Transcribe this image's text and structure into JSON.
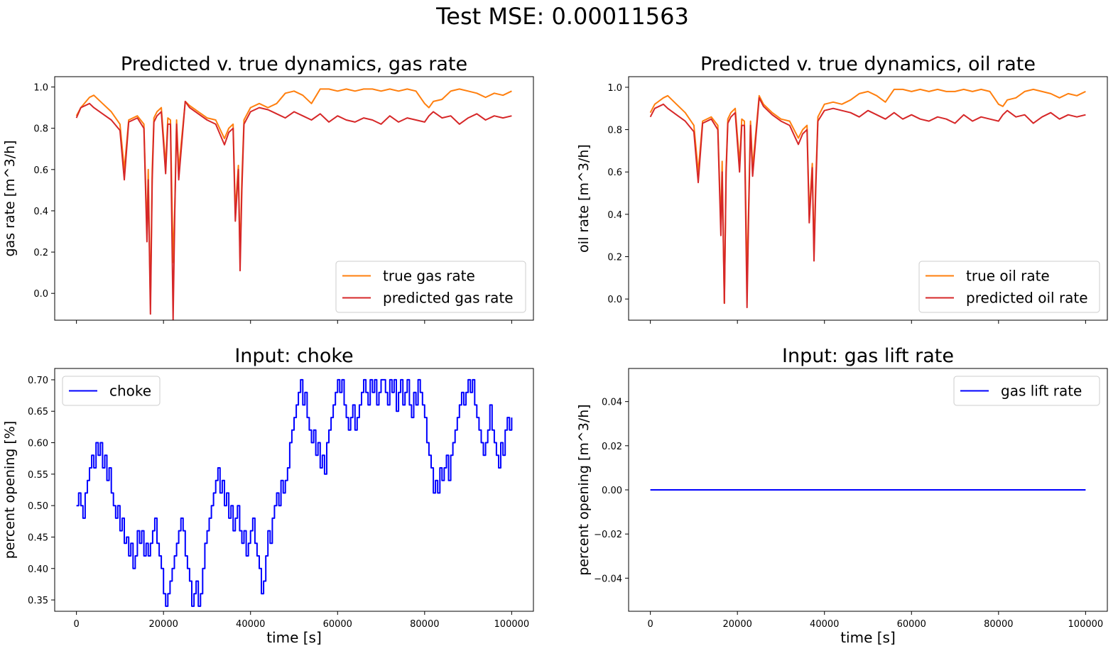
{
  "suptitle": "Test MSE: 0.00011563",
  "chart_data": [
    {
      "type": "line",
      "title": "Predicted v. true dynamics, gas rate",
      "xlabel": "",
      "ylabel": "gas rate [m^3/h]",
      "xlim": [
        -5000,
        105000
      ],
      "ylim": [
        -0.13,
        1.05
      ],
      "xticks": [
        0,
        20000,
        40000,
        60000,
        80000,
        100000
      ],
      "xticklabels": [
        "",
        "",
        "",
        "",
        "",
        ""
      ],
      "yticks": [
        0.0,
        0.2,
        0.4,
        0.6,
        0.8,
        1.0
      ],
      "yticklabels": [
        "0.0",
        "0.2",
        "0.4",
        "0.6",
        "0.8",
        "1.0"
      ],
      "legend_position": "lower right",
      "x": [
        0,
        1000,
        3000,
        4000,
        6000,
        8000,
        10000,
        11000,
        12000,
        14000,
        15500,
        16200,
        16500,
        17000,
        17400,
        17800,
        18500,
        19500,
        20500,
        21000,
        21600,
        22200,
        22600,
        23000,
        23500,
        25000,
        26000,
        28000,
        30000,
        32000,
        34000,
        35000,
        36000,
        36500,
        37200,
        37600,
        38000,
        38500,
        40000,
        42000,
        44000,
        46000,
        48000,
        50000,
        52000,
        54000,
        56000,
        58000,
        60000,
        62000,
        64000,
        66000,
        68000,
        70000,
        72000,
        74000,
        76000,
        78000,
        80000,
        81000,
        82000,
        84000,
        86000,
        88000,
        90000,
        92000,
        94000,
        96000,
        98000,
        100000
      ],
      "series": [
        {
          "name": "true gas rate",
          "color": "#ff7f0e",
          "values": [
            0.86,
            0.9,
            0.95,
            0.96,
            0.92,
            0.88,
            0.82,
            0.6,
            0.84,
            0.86,
            0.82,
            0.3,
            0.6,
            -0.05,
            0.6,
            0.85,
            0.88,
            0.9,
            0.62,
            0.85,
            0.84,
            0.15,
            0.42,
            0.84,
            0.6,
            0.93,
            0.91,
            0.88,
            0.85,
            0.84,
            0.75,
            0.8,
            0.82,
            0.4,
            0.62,
            0.16,
            0.55,
            0.84,
            0.9,
            0.92,
            0.9,
            0.92,
            0.97,
            0.98,
            0.96,
            0.92,
            0.99,
            0.99,
            0.98,
            0.99,
            0.98,
            0.99,
            0.99,
            0.98,
            0.99,
            0.98,
            0.99,
            0.98,
            0.92,
            0.9,
            0.93,
            0.94,
            0.98,
            0.99,
            0.98,
            0.97,
            0.95,
            0.97,
            0.96,
            0.98
          ]
        },
        {
          "name": "predicted gas rate",
          "color": "#d62728",
          "values": [
            0.85,
            0.9,
            0.92,
            0.9,
            0.87,
            0.84,
            0.79,
            0.55,
            0.83,
            0.85,
            0.8,
            0.25,
            0.55,
            -0.1,
            0.55,
            0.83,
            0.86,
            0.88,
            0.58,
            0.82,
            0.82,
            -0.13,
            0.4,
            0.82,
            0.55,
            0.93,
            0.9,
            0.87,
            0.84,
            0.82,
            0.72,
            0.78,
            0.8,
            0.35,
            0.6,
            0.11,
            0.5,
            0.82,
            0.88,
            0.9,
            0.89,
            0.87,
            0.85,
            0.88,
            0.86,
            0.84,
            0.87,
            0.83,
            0.86,
            0.84,
            0.83,
            0.85,
            0.84,
            0.82,
            0.86,
            0.83,
            0.85,
            0.84,
            0.83,
            0.86,
            0.88,
            0.85,
            0.86,
            0.82,
            0.85,
            0.87,
            0.84,
            0.86,
            0.85,
            0.86
          ]
        }
      ]
    },
    {
      "type": "line",
      "title": "Predicted v. true dynamics, oil rate",
      "xlabel": "",
      "ylabel": "oil rate [m^3/h]",
      "xlim": [
        -5000,
        105000
      ],
      "ylim": [
        -0.1,
        1.05
      ],
      "xticks": [
        0,
        20000,
        40000,
        60000,
        80000,
        100000
      ],
      "xticklabels": [
        "",
        "",
        "",
        "",
        "",
        ""
      ],
      "yticks": [
        0.0,
        0.2,
        0.4,
        0.6,
        0.8,
        1.0
      ],
      "yticklabels": [
        "0.0",
        "0.2",
        "0.4",
        "0.6",
        "0.8",
        "1.0"
      ],
      "legend_position": "lower right",
      "x": [
        0,
        1000,
        3000,
        4000,
        6000,
        8000,
        10000,
        11000,
        12000,
        14000,
        15500,
        16200,
        16500,
        17000,
        17400,
        17800,
        18500,
        19500,
        20500,
        21000,
        21600,
        22200,
        22600,
        23000,
        23500,
        25000,
        26000,
        28000,
        30000,
        32000,
        34000,
        35000,
        36000,
        36500,
        37200,
        37600,
        38000,
        38500,
        40000,
        42000,
        44000,
        46000,
        48000,
        50000,
        52000,
        54000,
        56000,
        58000,
        60000,
        62000,
        64000,
        66000,
        68000,
        70000,
        72000,
        74000,
        76000,
        78000,
        80000,
        81000,
        82000,
        84000,
        86000,
        88000,
        90000,
        92000,
        94000,
        96000,
        98000,
        100000
      ],
      "series": [
        {
          "name": "true oil rate",
          "color": "#ff7f0e",
          "values": [
            0.88,
            0.92,
            0.95,
            0.96,
            0.92,
            0.88,
            0.82,
            0.6,
            0.84,
            0.86,
            0.82,
            0.35,
            0.65,
            -0.02,
            0.62,
            0.85,
            0.88,
            0.9,
            0.64,
            0.85,
            0.84,
            0.1,
            0.45,
            0.84,
            0.62,
            0.96,
            0.92,
            0.88,
            0.85,
            0.84,
            0.76,
            0.8,
            0.82,
            0.4,
            0.64,
            0.22,
            0.56,
            0.86,
            0.92,
            0.93,
            0.92,
            0.94,
            0.97,
            0.98,
            0.96,
            0.93,
            0.99,
            0.99,
            0.98,
            0.99,
            0.98,
            0.99,
            0.98,
            0.98,
            0.99,
            0.98,
            0.99,
            0.98,
            0.92,
            0.91,
            0.94,
            0.95,
            0.98,
            0.99,
            0.98,
            0.97,
            0.95,
            0.97,
            0.96,
            0.98
          ]
        },
        {
          "name": "predicted oil rate",
          "color": "#d62728",
          "values": [
            0.86,
            0.9,
            0.92,
            0.9,
            0.87,
            0.84,
            0.79,
            0.55,
            0.83,
            0.85,
            0.8,
            0.3,
            0.6,
            -0.02,
            0.6,
            0.83,
            0.86,
            0.88,
            0.6,
            0.82,
            0.82,
            -0.04,
            0.42,
            0.82,
            0.58,
            0.95,
            0.91,
            0.87,
            0.84,
            0.82,
            0.73,
            0.78,
            0.8,
            0.36,
            0.62,
            0.18,
            0.52,
            0.84,
            0.89,
            0.9,
            0.89,
            0.88,
            0.86,
            0.89,
            0.87,
            0.85,
            0.88,
            0.85,
            0.87,
            0.85,
            0.84,
            0.86,
            0.85,
            0.83,
            0.87,
            0.84,
            0.86,
            0.85,
            0.84,
            0.87,
            0.89,
            0.86,
            0.87,
            0.83,
            0.86,
            0.88,
            0.85,
            0.87,
            0.86,
            0.87
          ]
        }
      ]
    },
    {
      "type": "line",
      "title": "Input: choke",
      "xlabel": "time [s]",
      "ylabel": "percent opening [%]",
      "xlim": [
        -5000,
        105000
      ],
      "ylim": [
        0.332,
        0.718
      ],
      "xticks": [
        0,
        20000,
        40000,
        60000,
        80000,
        100000
      ],
      "xticklabels": [
        "0",
        "20000",
        "40000",
        "60000",
        "80000",
        "100000"
      ],
      "yticks": [
        0.35,
        0.4,
        0.45,
        0.5,
        0.55,
        0.6,
        0.65,
        0.7
      ],
      "yticklabels": [
        "0.35",
        "0.40",
        "0.45",
        "0.50",
        "0.55",
        "0.60",
        "0.65",
        "0.70"
      ],
      "legend_position": "upper left",
      "step": true,
      "x": [
        0,
        500,
        1000,
        1500,
        2000,
        2500,
        3000,
        3500,
        4000,
        4500,
        5000,
        5500,
        6000,
        6500,
        7000,
        7500,
        8000,
        8500,
        9000,
        9500,
        10000,
        10500,
        11000,
        11500,
        12000,
        12500,
        13000,
        13500,
        14000,
        14500,
        15000,
        15500,
        16000,
        16500,
        17000,
        17500,
        18000,
        18500,
        19000,
        19500,
        20000,
        20500,
        21000,
        21500,
        22000,
        22500,
        23000,
        23500,
        24000,
        24500,
        25000,
        25500,
        26000,
        26500,
        27000,
        27500,
        28000,
        28500,
        29000,
        29500,
        30000,
        30500,
        31000,
        31500,
        32000,
        32500,
        33000,
        33500,
        34000,
        34500,
        35000,
        35500,
        36000,
        36500,
        37000,
        37500,
        38000,
        38500,
        39000,
        39500,
        40000,
        40500,
        41000,
        41500,
        42000,
        42500,
        43000,
        43500,
        44000,
        44500,
        45000,
        45500,
        46000,
        46500,
        47000,
        47500,
        48000,
        48500,
        49000,
        49500,
        50000,
        50500,
        51000,
        51500,
        52000,
        52500,
        53000,
        53500,
        54000,
        54500,
        55000,
        55500,
        56000,
        56500,
        57000,
        57500,
        58000,
        58500,
        59000,
        59500,
        60000,
        60500,
        61000,
        61500,
        62000,
        62500,
        63000,
        63500,
        64000,
        64500,
        65000,
        65500,
        66000,
        66500,
        67000,
        67500,
        68000,
        68500,
        69000,
        69500,
        70000,
        70500,
        71000,
        71500,
        72000,
        72500,
        73000,
        73500,
        74000,
        74500,
        75000,
        75500,
        76000,
        76500,
        77000,
        77500,
        78000,
        78500,
        79000,
        79500,
        80000,
        80500,
        81000,
        81500,
        82000,
        82500,
        83000,
        83500,
        84000,
        84500,
        85000,
        85500,
        86000,
        86500,
        87000,
        87500,
        88000,
        88500,
        89000,
        89500,
        90000,
        90500,
        91000,
        91500,
        92000,
        92500,
        93000,
        93500,
        94000,
        94500,
        95000,
        95500,
        96000,
        96500,
        97000,
        97500,
        98000,
        98500,
        99000,
        99500,
        100000
      ],
      "series": [
        {
          "name": "choke",
          "color": "#0000ff",
          "values": [
            0.5,
            0.52,
            0.5,
            0.48,
            0.52,
            0.54,
            0.56,
            0.58,
            0.56,
            0.6,
            0.58,
            0.6,
            0.56,
            0.58,
            0.54,
            0.56,
            0.52,
            0.5,
            0.48,
            0.5,
            0.46,
            0.48,
            0.44,
            0.45,
            0.42,
            0.44,
            0.4,
            0.42,
            0.46,
            0.44,
            0.46,
            0.42,
            0.44,
            0.42,
            0.44,
            0.46,
            0.48,
            0.44,
            0.42,
            0.4,
            0.36,
            0.34,
            0.36,
            0.38,
            0.4,
            0.42,
            0.44,
            0.46,
            0.48,
            0.46,
            0.42,
            0.4,
            0.38,
            0.34,
            0.36,
            0.38,
            0.34,
            0.36,
            0.4,
            0.44,
            0.46,
            0.48,
            0.5,
            0.52,
            0.54,
            0.56,
            0.52,
            0.54,
            0.5,
            0.52,
            0.48,
            0.5,
            0.46,
            0.48,
            0.5,
            0.46,
            0.44,
            0.46,
            0.42,
            0.44,
            0.46,
            0.48,
            0.44,
            0.42,
            0.4,
            0.36,
            0.38,
            0.42,
            0.46,
            0.44,
            0.48,
            0.5,
            0.52,
            0.5,
            0.54,
            0.52,
            0.54,
            0.56,
            0.6,
            0.62,
            0.64,
            0.66,
            0.68,
            0.7,
            0.66,
            0.68,
            0.64,
            0.62,
            0.6,
            0.62,
            0.58,
            0.6,
            0.56,
            0.58,
            0.55,
            0.6,
            0.62,
            0.64,
            0.66,
            0.68,
            0.7,
            0.68,
            0.7,
            0.66,
            0.64,
            0.62,
            0.64,
            0.66,
            0.62,
            0.64,
            0.66,
            0.68,
            0.7,
            0.68,
            0.66,
            0.7,
            0.68,
            0.7,
            0.66,
            0.68,
            0.7,
            0.7,
            0.68,
            0.66,
            0.7,
            0.68,
            0.7,
            0.65,
            0.68,
            0.7,
            0.66,
            0.68,
            0.7,
            0.66,
            0.64,
            0.68,
            0.66,
            0.7,
            0.68,
            0.66,
            0.64,
            0.6,
            0.58,
            0.56,
            0.52,
            0.54,
            0.52,
            0.56,
            0.54,
            0.56,
            0.58,
            0.54,
            0.58,
            0.6,
            0.62,
            0.64,
            0.66,
            0.68,
            0.66,
            0.68,
            0.7,
            0.68,
            0.7,
            0.66,
            0.64,
            0.62,
            0.6,
            0.58,
            0.6,
            0.62,
            0.66,
            0.62,
            0.6,
            0.58,
            0.56,
            0.6,
            0.58,
            0.62,
            0.64,
            0.62,
            0.64
          ]
        }
      ]
    },
    {
      "type": "line",
      "title": "Input: gas lift rate",
      "xlabel": "time [s]",
      "ylabel": "percent opening [m^3/h]",
      "xlim": [
        -5000,
        105000
      ],
      "ylim": [
        -0.055,
        0.055
      ],
      "xticks": [
        0,
        20000,
        40000,
        60000,
        80000,
        100000
      ],
      "xticklabels": [
        "0",
        "20000",
        "40000",
        "60000",
        "80000",
        "100000"
      ],
      "yticks": [
        -0.04,
        -0.02,
        0.0,
        0.02,
        0.04
      ],
      "yticklabels": [
        "−0.04",
        "−0.02",
        "0.00",
        "0.02",
        "0.04"
      ],
      "legend_position": "upper right",
      "x": [
        0,
        100000
      ],
      "series": [
        {
          "name": "gas lift rate",
          "color": "#0000ff",
          "values": [
            0.0,
            0.0
          ]
        }
      ]
    }
  ]
}
